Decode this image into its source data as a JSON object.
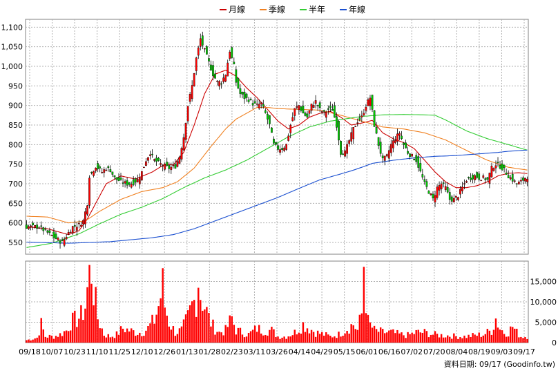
{
  "chart_data": {
    "type": "candlestick",
    "legend": {
      "position": "top-center",
      "items": [
        {
          "label": "月線",
          "color": "#cc0000"
        },
        {
          "label": "季線",
          "color": "#f08020"
        },
        {
          "label": "半年",
          "color": "#33cc33"
        },
        {
          "label": "年線",
          "color": "#1a4fd0"
        }
      ]
    },
    "price_axis": {
      "side": "left",
      "ylim": [
        520,
        1120
      ],
      "ticks": [
        550,
        600,
        650,
        700,
        750,
        800,
        850,
        900,
        950,
        1000,
        1050,
        1100
      ],
      "tick_labels": [
        "550",
        "600",
        "650",
        "700",
        "750",
        "800",
        "850",
        "900",
        "950",
        "1,000",
        "1,050",
        "1,100"
      ]
    },
    "volume_axis": {
      "side": "right",
      "ylim": [
        0,
        20000
      ],
      "ticks": [
        0,
        5000,
        10000,
        15000
      ],
      "tick_labels": [
        "0",
        "5,000",
        "10,000",
        "15,000"
      ]
    },
    "x_tick_labels": [
      "09/18",
      "10/07",
      "10/23",
      "11/10",
      "11/25",
      "12/10",
      "12/26",
      "01/13",
      "01/28",
      "02/23",
      "03/11",
      "03/26",
      "04/14",
      "04/29",
      "05/15",
      "06/01",
      "06/16",
      "07/02",
      "07/20",
      "08/04",
      "08/19",
      "09/03",
      "09/17"
    ],
    "grid": true,
    "source_text": "資料日期: 09/17  (Goodinfo.tw)",
    "up_color": "#ff0000",
    "down_color": "#00cc00",
    "volume_color": "#ff0000",
    "price_anchors": [
      [
        0,
        590
      ],
      [
        6,
        590
      ],
      [
        10,
        575
      ],
      [
        14,
        560
      ],
      [
        17,
        550
      ],
      [
        20,
        575
      ],
      [
        22,
        590
      ],
      [
        25,
        595
      ],
      [
        27,
        605
      ],
      [
        29,
        650
      ],
      [
        30,
        720
      ],
      [
        33,
        745
      ],
      [
        36,
        730
      ],
      [
        38,
        740
      ],
      [
        40,
        735
      ],
      [
        42,
        715
      ],
      [
        45,
        705
      ],
      [
        48,
        700
      ],
      [
        50,
        700
      ],
      [
        53,
        710
      ],
      [
        55,
        730
      ],
      [
        57,
        760
      ],
      [
        59,
        780
      ],
      [
        61,
        760
      ],
      [
        64,
        750
      ],
      [
        66,
        745
      ],
      [
        68,
        740
      ],
      [
        71,
        745
      ],
      [
        73,
        770
      ],
      [
        75,
        820
      ],
      [
        77,
        900
      ],
      [
        79,
        950
      ],
      [
        81,
        1020
      ],
      [
        83,
        1070
      ],
      [
        85,
        1040
      ],
      [
        87,
        1010
      ],
      [
        89,
        980
      ],
      [
        91,
        960
      ],
      [
        93,
        960
      ],
      [
        95,
        980
      ],
      [
        97,
        1040
      ],
      [
        99,
        1000
      ],
      [
        100,
        960
      ],
      [
        102,
        930
      ],
      [
        104,
        920
      ],
      [
        106,
        915
      ],
      [
        108,
        905
      ],
      [
        110,
        900
      ],
      [
        112,
        905
      ],
      [
        114,
        880
      ],
      [
        116,
        850
      ],
      [
        118,
        800
      ],
      [
        120,
        790
      ],
      [
        122,
        790
      ],
      [
        124,
        800
      ],
      [
        126,
        850
      ],
      [
        128,
        890
      ],
      [
        130,
        900
      ],
      [
        132,
        880
      ],
      [
        134,
        870
      ],
      [
        136,
        900
      ],
      [
        138,
        910
      ],
      [
        140,
        890
      ],
      [
        142,
        880
      ],
      [
        144,
        890
      ],
      [
        146,
        890
      ],
      [
        148,
        850
      ],
      [
        150,
        780
      ],
      [
        152,
        780
      ],
      [
        154,
        810
      ],
      [
        156,
        840
      ],
      [
        158,
        860
      ],
      [
        160,
        870
      ],
      [
        162,
        900
      ],
      [
        164,
        920
      ],
      [
        166,
        850
      ],
      [
        168,
        800
      ],
      [
        170,
        760
      ],
      [
        172,
        770
      ],
      [
        174,
        800
      ],
      [
        176,
        815
      ],
      [
        178,
        830
      ],
      [
        180,
        800
      ],
      [
        182,
        780
      ],
      [
        184,
        770
      ],
      [
        186,
        760
      ],
      [
        188,
        730
      ],
      [
        190,
        700
      ],
      [
        192,
        680
      ],
      [
        194,
        660
      ],
      [
        196,
        690
      ],
      [
        198,
        700
      ],
      [
        200,
        690
      ],
      [
        202,
        660
      ],
      [
        204,
        660
      ],
      [
        206,
        670
      ],
      [
        208,
        690
      ],
      [
        210,
        710
      ],
      [
        212,
        715
      ],
      [
        214,
        720
      ],
      [
        216,
        715
      ],
      [
        218,
        715
      ],
      [
        220,
        710
      ],
      [
        222,
        740
      ],
      [
        224,
        750
      ],
      [
        226,
        745
      ],
      [
        228,
        735
      ],
      [
        230,
        720
      ],
      [
        232,
        710
      ],
      [
        234,
        700
      ],
      [
        236,
        705
      ],
      [
        238,
        715
      ],
      [
        239,
        718
      ]
    ],
    "volume_anchors": [
      [
        0,
        600
      ],
      [
        5,
        1200
      ],
      [
        7,
        4500
      ],
      [
        9,
        1500
      ],
      [
        13,
        1500
      ],
      [
        16,
        2000
      ],
      [
        19,
        3000
      ],
      [
        21,
        5000
      ],
      [
        23,
        5500
      ],
      [
        26,
        6500
      ],
      [
        28,
        9000
      ],
      [
        29,
        13000
      ],
      [
        30,
        16500
      ],
      [
        31,
        18000
      ],
      [
        32,
        13000
      ],
      [
        34,
        6000
      ],
      [
        37,
        2000
      ],
      [
        40,
        1500
      ],
      [
        43,
        2000
      ],
      [
        46,
        3500
      ],
      [
        49,
        3000
      ],
      [
        52,
        2500
      ],
      [
        55,
        2500
      ],
      [
        58,
        3500
      ],
      [
        61,
        5500
      ],
      [
        63,
        9000
      ],
      [
        65,
        14000
      ],
      [
        66,
        9000
      ],
      [
        68,
        5000
      ],
      [
        71,
        2500
      ],
      [
        74,
        3000
      ],
      [
        77,
        6000
      ],
      [
        79,
        9000
      ],
      [
        81,
        11000
      ],
      [
        82,
        16000
      ],
      [
        83,
        12000
      ],
      [
        85,
        9000
      ],
      [
        87,
        6000
      ],
      [
        89,
        4000
      ],
      [
        92,
        2500
      ],
      [
        95,
        3000
      ],
      [
        98,
        6000
      ],
      [
        100,
        3000
      ],
      [
        103,
        2500
      ],
      [
        106,
        2000
      ],
      [
        110,
        3500
      ],
      [
        113,
        3000
      ],
      [
        117,
        3000
      ],
      [
        120,
        1500
      ],
      [
        124,
        1500
      ],
      [
        128,
        2500
      ],
      [
        132,
        4500
      ],
      [
        135,
        3500
      ],
      [
        138,
        2500
      ],
      [
        142,
        2000
      ],
      [
        145,
        1500
      ],
      [
        149,
        2000
      ],
      [
        153,
        3500
      ],
      [
        156,
        4500
      ],
      [
        158,
        3000
      ],
      [
        160,
        7000
      ],
      [
        161,
        20000
      ],
      [
        162,
        11000
      ],
      [
        163,
        5000
      ],
      [
        166,
        3000
      ],
      [
        170,
        2500
      ],
      [
        174,
        2500
      ],
      [
        178,
        2000
      ],
      [
        182,
        1800
      ],
      [
        186,
        2500
      ],
      [
        190,
        2500
      ],
      [
        194,
        2000
      ],
      [
        198,
        1800
      ],
      [
        202,
        1700
      ],
      [
        206,
        1500
      ],
      [
        210,
        1500
      ],
      [
        214,
        1800
      ],
      [
        218,
        2000
      ],
      [
        222,
        3000
      ],
      [
        224,
        6000
      ],
      [
        226,
        3500
      ],
      [
        228,
        2500
      ],
      [
        230,
        2500
      ],
      [
        232,
        4000
      ],
      [
        234,
        2500
      ],
      [
        236,
        1500
      ],
      [
        239,
        1500
      ]
    ],
    "ma_anchors": {
      "月線": [
        [
          0,
          590
        ],
        [
          10,
          585
        ],
        [
          20,
          570
        ],
        [
          25,
          580
        ],
        [
          29,
          610
        ],
        [
          33,
          650
        ],
        [
          38,
          700
        ],
        [
          45,
          720
        ],
        [
          52,
          712
        ],
        [
          60,
          730
        ],
        [
          66,
          750
        ],
        [
          70,
          748
        ],
        [
          75,
          780
        ],
        [
          80,
          850
        ],
        [
          85,
          930
        ],
        [
          90,
          980
        ],
        [
          95,
          990
        ],
        [
          100,
          975
        ],
        [
          105,
          945
        ],
        [
          110,
          920
        ],
        [
          115,
          890
        ],
        [
          120,
          860
        ],
        [
          125,
          840
        ],
        [
          130,
          850
        ],
        [
          135,
          870
        ],
        [
          140,
          880
        ],
        [
          145,
          885
        ],
        [
          150,
          870
        ],
        [
          155,
          850
        ],
        [
          160,
          855
        ],
        [
          165,
          862
        ],
        [
          170,
          830
        ],
        [
          175,
          815
        ],
        [
          180,
          805
        ],
        [
          185,
          790
        ],
        [
          190,
          760
        ],
        [
          195,
          730
        ],
        [
          200,
          705
        ],
        [
          205,
          690
        ],
        [
          210,
          690
        ],
        [
          215,
          695
        ],
        [
          220,
          705
        ],
        [
          225,
          720
        ],
        [
          230,
          727
        ],
        [
          235,
          728
        ],
        [
          239,
          726
        ]
      ],
      "季線": [
        [
          0,
          617
        ],
        [
          10,
          615
        ],
        [
          20,
          600
        ],
        [
          28,
          605
        ],
        [
          35,
          630
        ],
        [
          45,
          660
        ],
        [
          55,
          680
        ],
        [
          65,
          690
        ],
        [
          72,
          705
        ],
        [
          80,
          740
        ],
        [
          88,
          795
        ],
        [
          95,
          840
        ],
        [
          100,
          865
        ],
        [
          105,
          880
        ],
        [
          110,
          895
        ],
        [
          115,
          895
        ],
        [
          120,
          892
        ],
        [
          130,
          890
        ],
        [
          140,
          888
        ],
        [
          150,
          875
        ],
        [
          160,
          860
        ],
        [
          170,
          845
        ],
        [
          180,
          840
        ],
        [
          190,
          830
        ],
        [
          200,
          812
        ],
        [
          210,
          785
        ],
        [
          220,
          760
        ],
        [
          230,
          742
        ],
        [
          239,
          735
        ]
      ],
      "半年": [
        [
          0,
          537
        ],
        [
          12,
          548
        ],
        [
          25,
          572
        ],
        [
          35,
          598
        ],
        [
          45,
          622
        ],
        [
          55,
          640
        ],
        [
          65,
          662
        ],
        [
          75,
          690
        ],
        [
          85,
          715
        ],
        [
          95,
          735
        ],
        [
          105,
          760
        ],
        [
          115,
          790
        ],
        [
          125,
          820
        ],
        [
          135,
          845
        ],
        [
          145,
          860
        ],
        [
          155,
          868
        ],
        [
          160,
          872
        ],
        [
          170,
          876
        ],
        [
          180,
          877
        ],
        [
          190,
          876
        ],
        [
          195,
          875
        ],
        [
          200,
          863
        ],
        [
          210,
          835
        ],
        [
          220,
          815
        ],
        [
          230,
          800
        ],
        [
          235,
          792
        ],
        [
          239,
          786
        ]
      ],
      "年線": [
        [
          0,
          551
        ],
        [
          20,
          548
        ],
        [
          40,
          552
        ],
        [
          60,
          562
        ],
        [
          70,
          570
        ],
        [
          80,
          585
        ],
        [
          90,
          605
        ],
        [
          100,
          625
        ],
        [
          110,
          645
        ],
        [
          120,
          665
        ],
        [
          130,
          688
        ],
        [
          140,
          710
        ],
        [
          150,
          725
        ],
        [
          155,
          733
        ],
        [
          160,
          742
        ],
        [
          165,
          752
        ],
        [
          175,
          760
        ],
        [
          185,
          766
        ],
        [
          195,
          770
        ],
        [
          205,
          772
        ],
        [
          215,
          776
        ],
        [
          225,
          780
        ],
        [
          230,
          783
        ],
        [
          239,
          786
        ]
      ]
    }
  }
}
